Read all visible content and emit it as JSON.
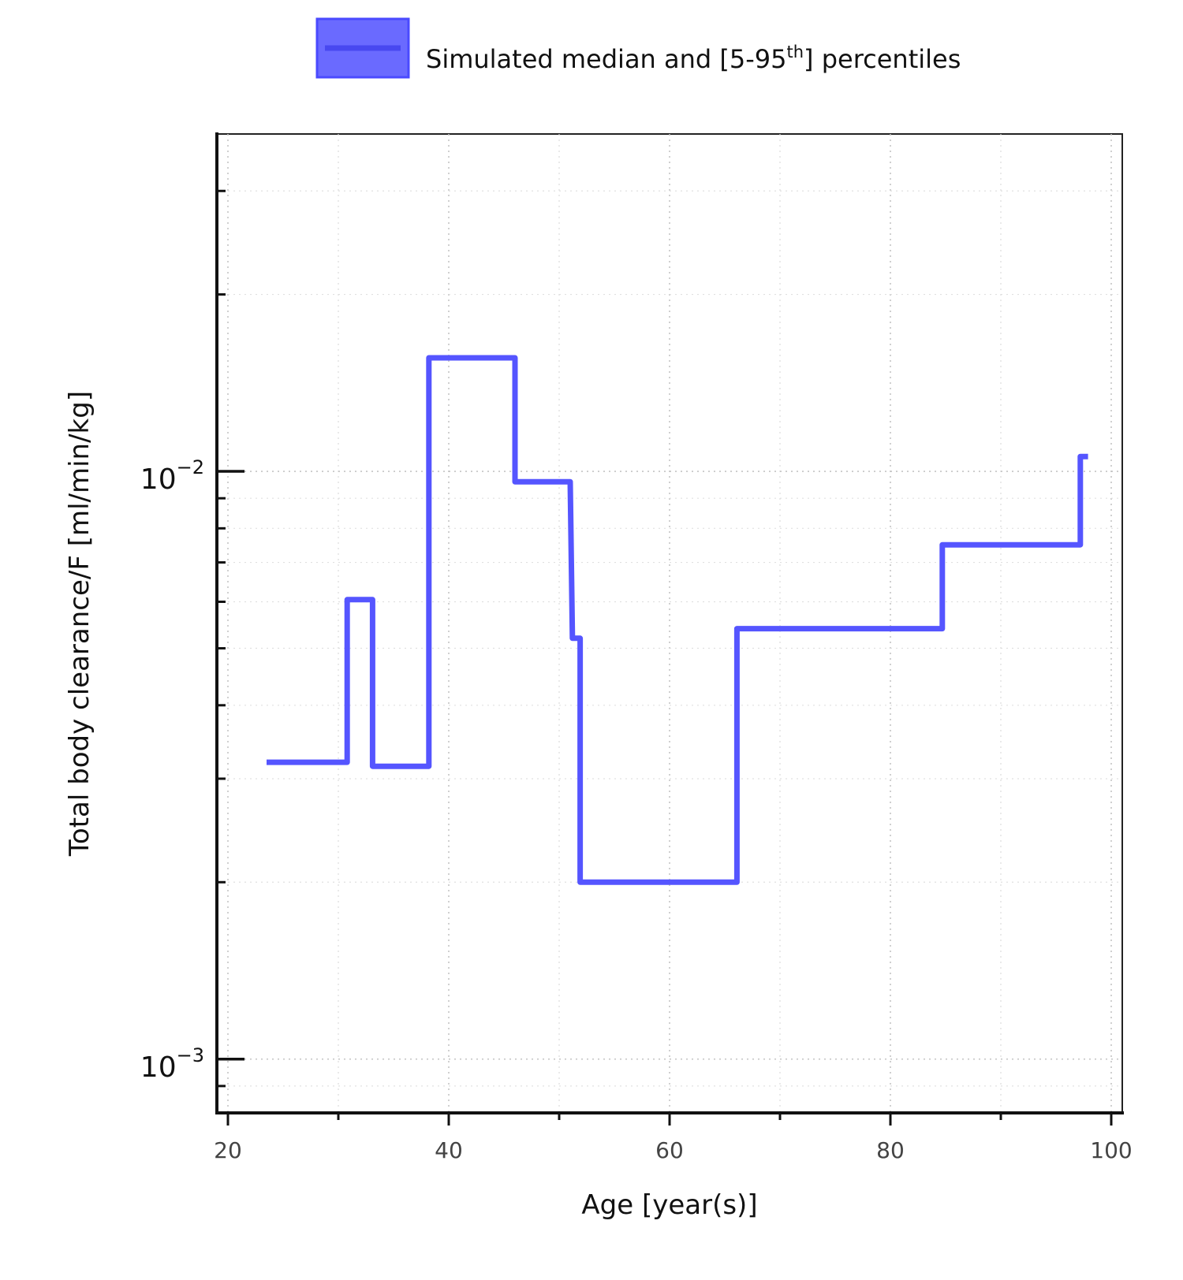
{
  "chart_data": {
    "type": "line",
    "title": "",
    "xlabel": "Age [year(s)]",
    "ylabel": "Total body clearance/F [ml/min/kg]",
    "y_scale": "log",
    "xlim": [
      19,
      101
    ],
    "ylim": [
      0.00081,
      0.0375
    ],
    "grid": true,
    "legend_position": "top-center",
    "x_ticks": [
      20,
      40,
      60,
      80,
      100
    ],
    "x_tick_labels": [
      "20",
      "40",
      "60",
      "80",
      "100"
    ],
    "y_ticks": [
      0.001,
      0.01
    ],
    "y_tick_labels": [
      {
        "base": "10",
        "exp": "−3"
      },
      {
        "base": "10",
        "exp": "−2"
      }
    ],
    "series": [
      {
        "name": "Simulated median and [5-95",
        "legend_superscript": "th",
        "legend_suffix": "] percentiles",
        "color": "#5555ff",
        "x": [
          23.5,
          30.8,
          30.8,
          33.1,
          33.1,
          38.2,
          38.2,
          46.0,
          46.0,
          51.0,
          51.2,
          51.9,
          51.9,
          66.1,
          66.1,
          84.7,
          84.7,
          97.2,
          97.2,
          97.9
        ],
        "y": [
          0.0032,
          0.0032,
          0.00605,
          0.00605,
          0.00315,
          0.00315,
          0.0156,
          0.0156,
          0.0096,
          0.0096,
          0.0052,
          0.0052,
          0.002,
          0.002,
          0.0054,
          0.0054,
          0.0075,
          0.0075,
          0.0106,
          0.0106
        ]
      }
    ]
  }
}
